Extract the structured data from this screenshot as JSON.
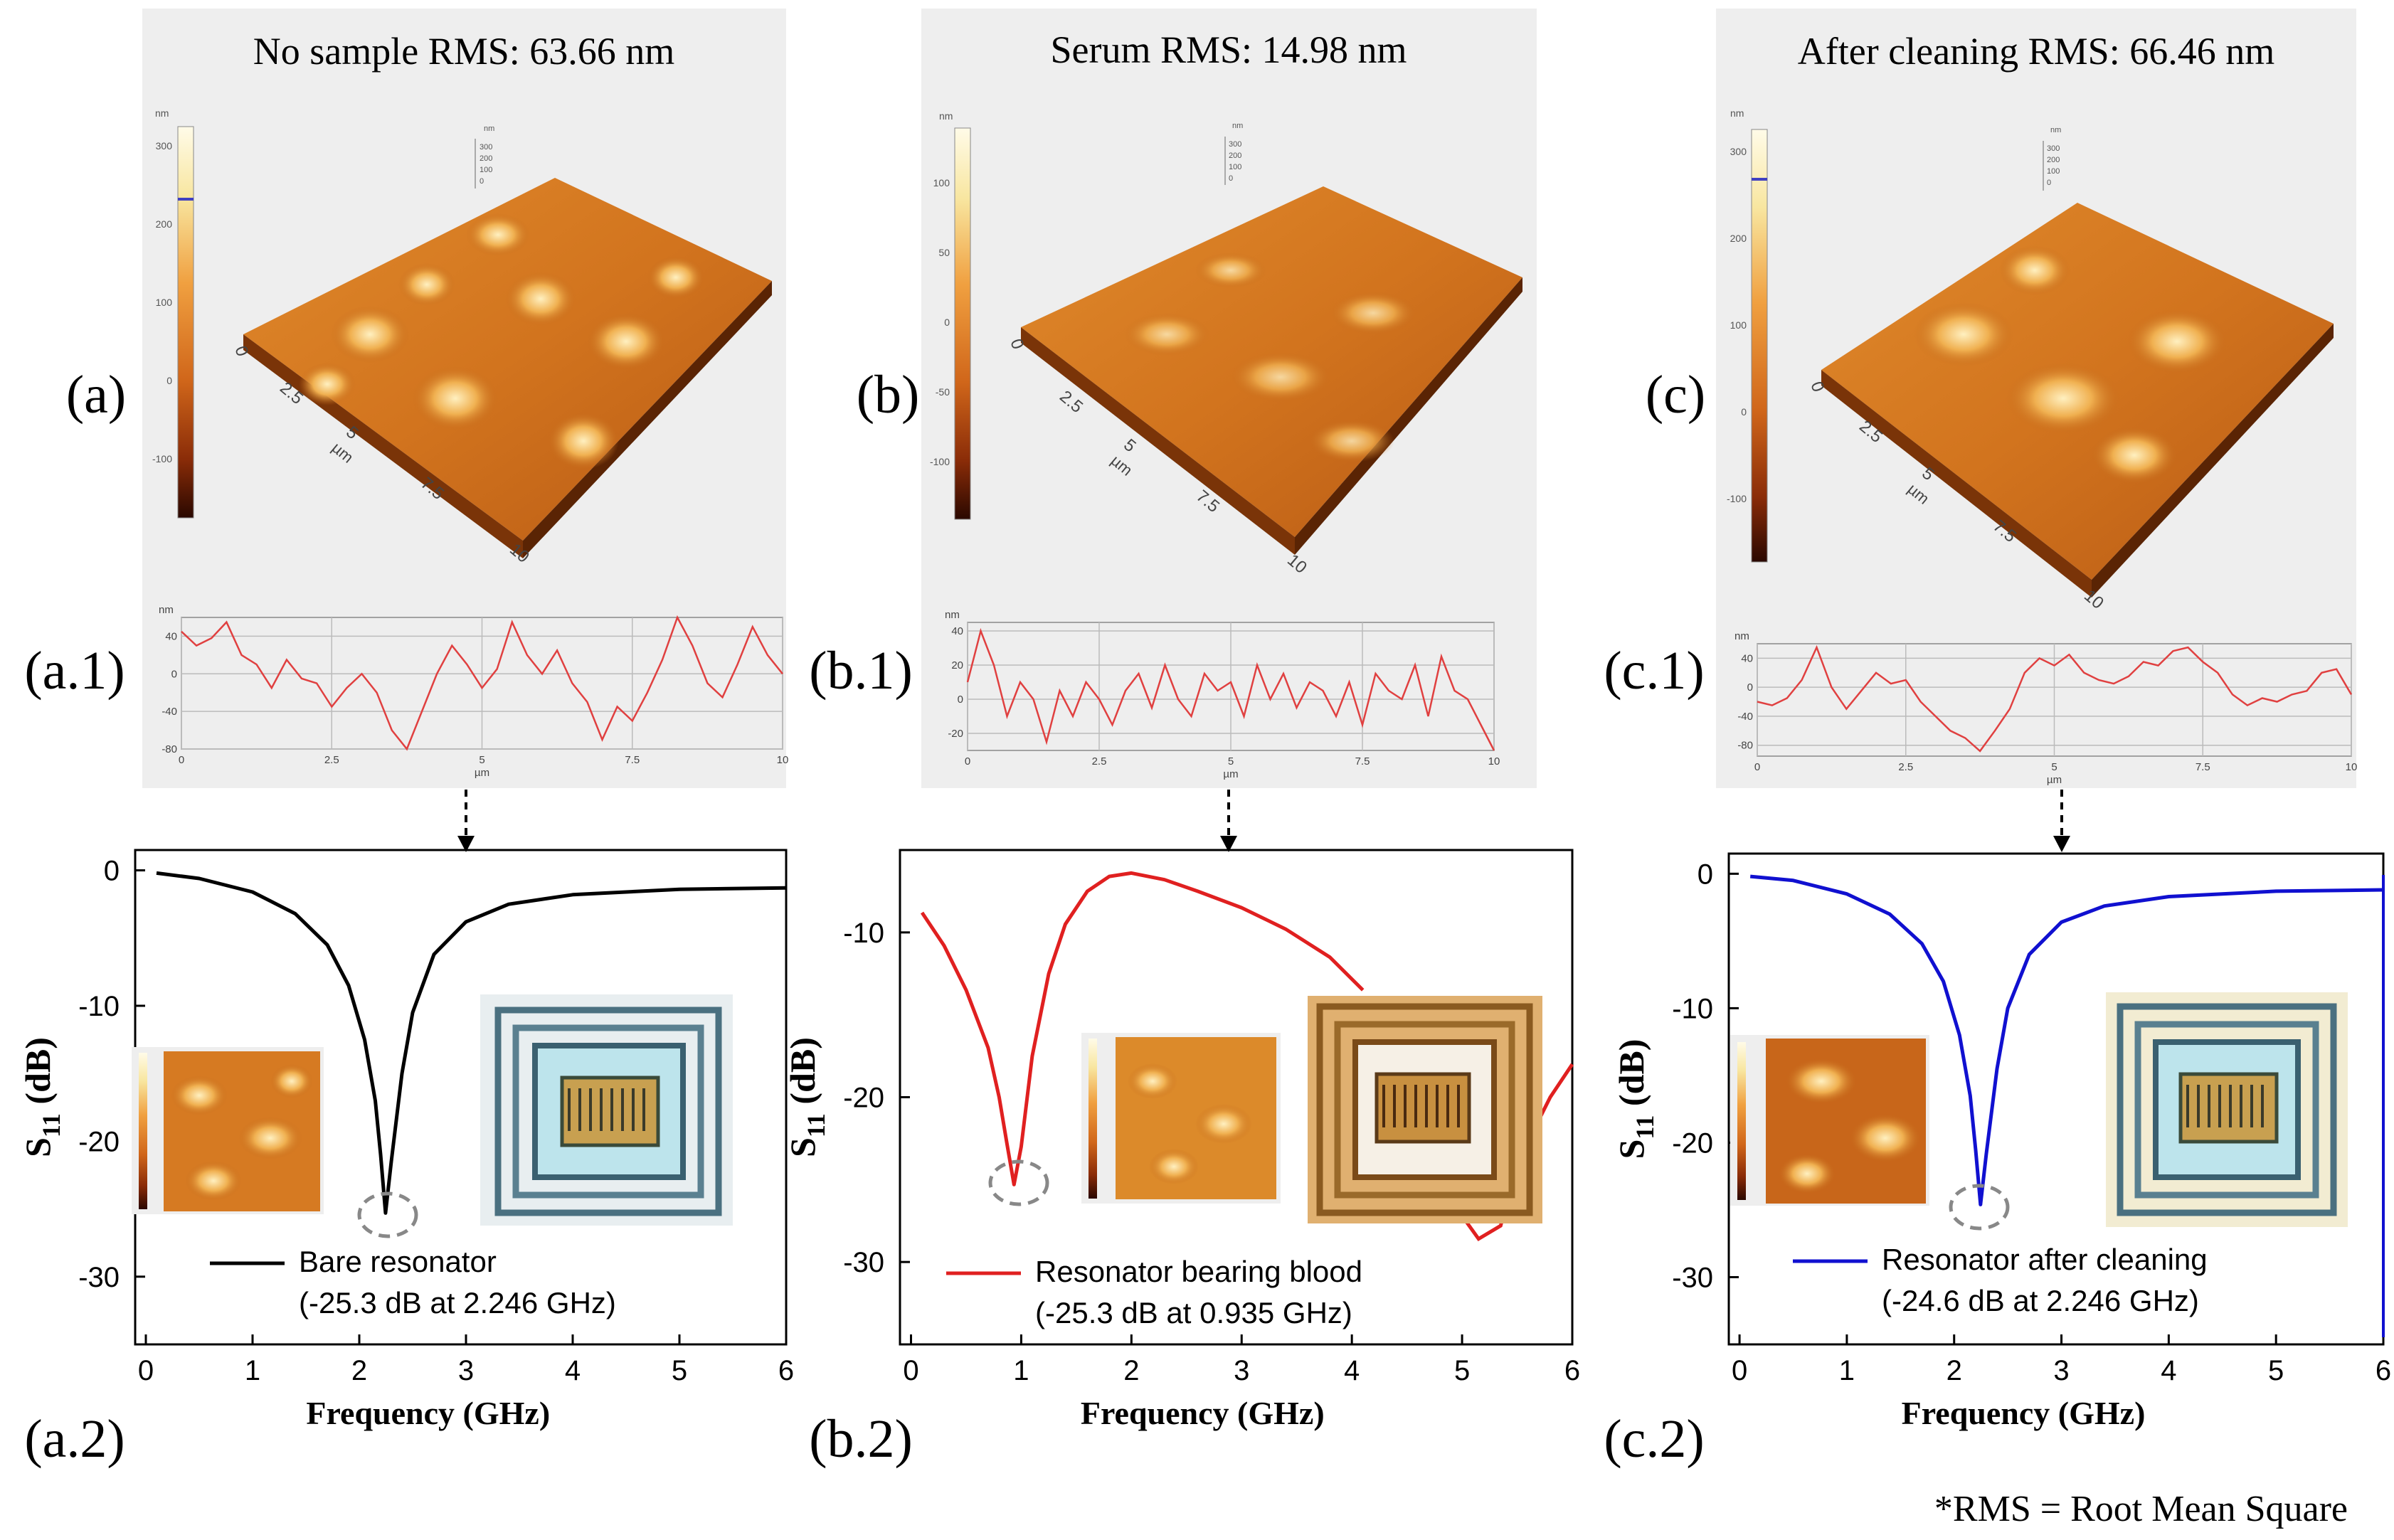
{
  "panel_letters": [
    "(a)",
    "(b)",
    "(c)"
  ],
  "profile_letters": [
    "(a.1)",
    "(b.1)",
    "(c.1)"
  ],
  "s11_letters": [
    "(a.2)",
    "(b.2)",
    "(c.2)"
  ],
  "footnote": "*RMS = Root Mean Square",
  "colors": {
    "bare": "#000000",
    "blood": "#e02020",
    "clean": "#1010d0",
    "profile": "#e04040",
    "dash_ellipse": "#888888"
  },
  "chart_data": [
    {
      "type": "surface",
      "title": "No sample RMS: 63.66 nm",
      "colorbar_unit": "nm",
      "colorbar_ticks": [
        "300",
        "200",
        "100",
        "0",
        "-100"
      ],
      "axis_ticks": [
        "0",
        "2.5",
        "5",
        "7.5",
        "10"
      ],
      "axis_unit": "µm",
      "z_ticks": [
        "300",
        "200",
        "100",
        "0"
      ],
      "z_unit": "nm"
    },
    {
      "type": "surface",
      "title": "Serum RMS: 14.98 nm",
      "colorbar_unit": "nm",
      "colorbar_ticks": [
        "100",
        "50",
        "0",
        "-50",
        "-100"
      ],
      "axis_ticks": [
        "0",
        "2.5",
        "5",
        "7.5",
        "10"
      ],
      "axis_unit": "µm",
      "z_ticks": [
        "300",
        "200",
        "100",
        "0"
      ],
      "z_unit": "nm"
    },
    {
      "type": "surface",
      "title": "After cleaning RMS: 66.46 nm",
      "colorbar_unit": "nm",
      "colorbar_ticks": [
        "300",
        "200",
        "100",
        "0",
        "-100"
      ],
      "axis_ticks": [
        "0",
        "2.5",
        "5",
        "7.5",
        "10"
      ],
      "axis_unit": "µm",
      "z_ticks": [
        "300",
        "200",
        "100",
        "0"
      ],
      "z_unit": "nm"
    },
    {
      "type": "line",
      "ylabel": "nm",
      "xlabel": "µm",
      "xlim": [
        0,
        10
      ],
      "ylim": [
        -80,
        60
      ],
      "yticks": [
        "40",
        "0",
        "-40",
        "-80"
      ],
      "ytick_values": [
        40,
        0,
        -40,
        -80
      ],
      "xticks": [
        "0",
        "2.5",
        "5",
        "7.5",
        "10"
      ],
      "xtick_values": [
        0,
        2.5,
        5,
        7.5,
        10
      ],
      "x": [
        0,
        0.25,
        0.5,
        0.75,
        1.0,
        1.25,
        1.5,
        1.75,
        2.0,
        2.25,
        2.5,
        2.75,
        3.0,
        3.25,
        3.5,
        3.75,
        4.0,
        4.25,
        4.5,
        4.75,
        5.0,
        5.25,
        5.5,
        5.75,
        6.0,
        6.25,
        6.5,
        6.75,
        7.0,
        7.25,
        7.5,
        7.75,
        8.0,
        8.25,
        8.5,
        8.75,
        9.0,
        9.25,
        9.5,
        9.75,
        10.0
      ],
      "y": [
        45,
        30,
        38,
        55,
        20,
        10,
        -15,
        15,
        -5,
        -10,
        -35,
        -15,
        0,
        -20,
        -60,
        -80,
        -40,
        0,
        30,
        10,
        -15,
        5,
        55,
        20,
        0,
        25,
        -10,
        -30,
        -70,
        -35,
        -50,
        -20,
        15,
        60,
        30,
        -10,
        -25,
        10,
        50,
        20,
        0
      ]
    },
    {
      "type": "line",
      "ylabel": "nm",
      "xlabel": "µm",
      "xlim": [
        0,
        10
      ],
      "ylim": [
        -30,
        45
      ],
      "yticks": [
        "40",
        "20",
        "0",
        "-20"
      ],
      "ytick_values": [
        40,
        20,
        0,
        -20
      ],
      "xticks": [
        "0",
        "2.5",
        "5",
        "7.5",
        "10"
      ],
      "xtick_values": [
        0,
        2.5,
        5,
        7.5,
        10
      ],
      "x": [
        0,
        0.25,
        0.5,
        0.75,
        1.0,
        1.25,
        1.5,
        1.75,
        2.0,
        2.25,
        2.5,
        2.75,
        3.0,
        3.25,
        3.5,
        3.75,
        4.0,
        4.25,
        4.5,
        4.75,
        5.0,
        5.25,
        5.5,
        5.75,
        6.0,
        6.25,
        6.5,
        6.75,
        7.0,
        7.25,
        7.5,
        7.75,
        8.0,
        8.25,
        8.5,
        8.75,
        9.0,
        9.25,
        9.5,
        9.75,
        10.0
      ],
      "y": [
        10,
        40,
        20,
        -10,
        10,
        0,
        -25,
        5,
        -10,
        10,
        0,
        -15,
        5,
        15,
        -5,
        20,
        0,
        -10,
        15,
        5,
        10,
        -10,
        20,
        0,
        15,
        -5,
        10,
        5,
        -10,
        10,
        -15,
        15,
        5,
        0,
        20,
        -10,
        25,
        5,
        0,
        -15,
        -30
      ]
    },
    {
      "type": "line",
      "ylabel": "nm",
      "xlabel": "µm",
      "xlim": [
        0,
        10
      ],
      "ylim": [
        -95,
        60
      ],
      "yticks": [
        "40",
        "0",
        "-40",
        "-80"
      ],
      "ytick_values": [
        40,
        0,
        -40,
        -80
      ],
      "xticks": [
        "0",
        "2.5",
        "5",
        "7.5",
        "10"
      ],
      "xtick_values": [
        0,
        2.5,
        5,
        7.5,
        10
      ],
      "x": [
        0,
        0.25,
        0.5,
        0.75,
        1.0,
        1.25,
        1.5,
        1.75,
        2.0,
        2.25,
        2.5,
        2.75,
        3.0,
        3.25,
        3.5,
        3.75,
        4.0,
        4.25,
        4.5,
        4.75,
        5.0,
        5.25,
        5.5,
        5.75,
        6.0,
        6.25,
        6.5,
        6.75,
        7.0,
        7.25,
        7.5,
        7.75,
        8.0,
        8.25,
        8.5,
        8.75,
        9.0,
        9.25,
        9.5,
        9.75,
        10.0
      ],
      "y": [
        -20,
        -25,
        -15,
        10,
        55,
        0,
        -30,
        -5,
        20,
        5,
        10,
        -20,
        -40,
        -60,
        -70,
        -88,
        -60,
        -30,
        20,
        40,
        30,
        45,
        20,
        10,
        5,
        15,
        35,
        30,
        50,
        55,
        35,
        20,
        -10,
        -25,
        -15,
        -20,
        -10,
        -5,
        20,
        25,
        -10
      ]
    },
    {
      "type": "line",
      "xlabel": "Frequency (GHz)",
      "ylabel": "S11 (dB)",
      "ylabel_main": "S",
      "ylabel_sub": "11",
      "ylabel_unit": " (dB)",
      "xlim": [
        -0.1,
        6
      ],
      "ylim": [
        -35,
        1.5
      ],
      "xticks": [
        "0",
        "1",
        "2",
        "3",
        "4",
        "5",
        "6"
      ],
      "xtick_values": [
        0,
        1,
        2,
        3,
        4,
        5,
        6
      ],
      "yticks": [
        "0",
        "-10",
        "-20",
        "-30"
      ],
      "ytick_values": [
        0,
        -10,
        -20,
        -30
      ],
      "series": [
        {
          "name": "Bare resonator",
          "color": "#000000",
          "x": [
            0.1,
            0.5,
            1.0,
            1.4,
            1.7,
            1.9,
            2.05,
            2.15,
            2.2,
            2.246,
            2.3,
            2.4,
            2.5,
            2.7,
            3.0,
            3.4,
            4.0,
            5.0,
            6.0
          ],
          "y": [
            -0.2,
            -0.6,
            -1.6,
            -3.2,
            -5.5,
            -8.5,
            -12.5,
            -17.0,
            -21.0,
            -25.3,
            -21.5,
            -15.0,
            -10.5,
            -6.2,
            -3.8,
            -2.5,
            -1.8,
            -1.4,
            -1.3
          ]
        }
      ],
      "annotation": {
        "text": "(-25.3 dB at 2.246 GHz)",
        "x": 2.246,
        "y": -25.3
      }
    },
    {
      "type": "line",
      "xlabel": "Frequency (GHz)",
      "ylabel": "S11 (dB)",
      "ylabel_main": "S",
      "ylabel_sub": "11",
      "ylabel_unit": " (dB)",
      "xlim": [
        -0.1,
        6
      ],
      "ylim": [
        -35,
        -5
      ],
      "xticks": [
        "0",
        "1",
        "2",
        "3",
        "4",
        "5",
        "6"
      ],
      "xtick_values": [
        0,
        1,
        2,
        3,
        4,
        5,
        6
      ],
      "yticks": [
        "-10",
        "-20",
        "-30"
      ],
      "ytick_values": [
        -10,
        -20,
        -30
      ],
      "series": [
        {
          "name": "Resonator bearing blood",
          "color": "#e02020",
          "x": [
            0.1,
            0.3,
            0.5,
            0.7,
            0.8,
            0.87,
            0.935,
            1.0,
            1.1,
            1.25,
            1.4,
            1.6,
            1.8,
            2.0,
            2.3,
            2.6,
            3.0,
            3.4,
            3.8,
            4.1
          ],
          "y": [
            -8.8,
            -10.8,
            -13.5,
            -17.0,
            -20.0,
            -22.8,
            -25.3,
            -23.0,
            -17.5,
            -12.5,
            -9.5,
            -7.5,
            -6.6,
            -6.4,
            -6.8,
            -7.5,
            -8.5,
            -9.8,
            -11.5,
            -13.5
          ]
        }
      ],
      "annotation": {
        "text": "(-25.3 dB at 0.935 GHz)",
        "x": 0.935,
        "y": -25.3
      }
    },
    {
      "type": "line",
      "xlabel": "Frequency (GHz)",
      "ylabel": "S11 (dB)",
      "ylabel_main": "S",
      "ylabel_sub": "11",
      "ylabel_unit": " (dB)",
      "xlim": [
        -0.1,
        6
      ],
      "ylim": [
        -35,
        1.5
      ],
      "xticks": [
        "0",
        "1",
        "2",
        "3",
        "4",
        "5",
        "6"
      ],
      "xtick_values": [
        0,
        1,
        2,
        3,
        4,
        5,
        6
      ],
      "yticks": [
        "0",
        "-10",
        "-20",
        "-30"
      ],
      "ytick_values": [
        0,
        -10,
        -20,
        -30
      ],
      "series": [
        {
          "name": "Resonator after cleaning",
          "color": "#1010d0",
          "x": [
            0.1,
            0.5,
            1.0,
            1.4,
            1.7,
            1.9,
            2.05,
            2.15,
            2.2,
            2.246,
            2.3,
            2.4,
            2.5,
            2.7,
            3.0,
            3.4,
            4.0,
            5.0,
            6.0
          ],
          "y": [
            -0.2,
            -0.5,
            -1.5,
            -3.0,
            -5.2,
            -8.0,
            -12.0,
            -16.5,
            -20.5,
            -24.6,
            -20.8,
            -14.5,
            -10.0,
            -6.0,
            -3.6,
            -2.4,
            -1.7,
            -1.3,
            -1.2
          ]
        }
      ],
      "annotation": {
        "text": "(-24.6 dB at 2.246 GHz)",
        "x": 2.246,
        "y": -24.6
      }
    }
  ]
}
